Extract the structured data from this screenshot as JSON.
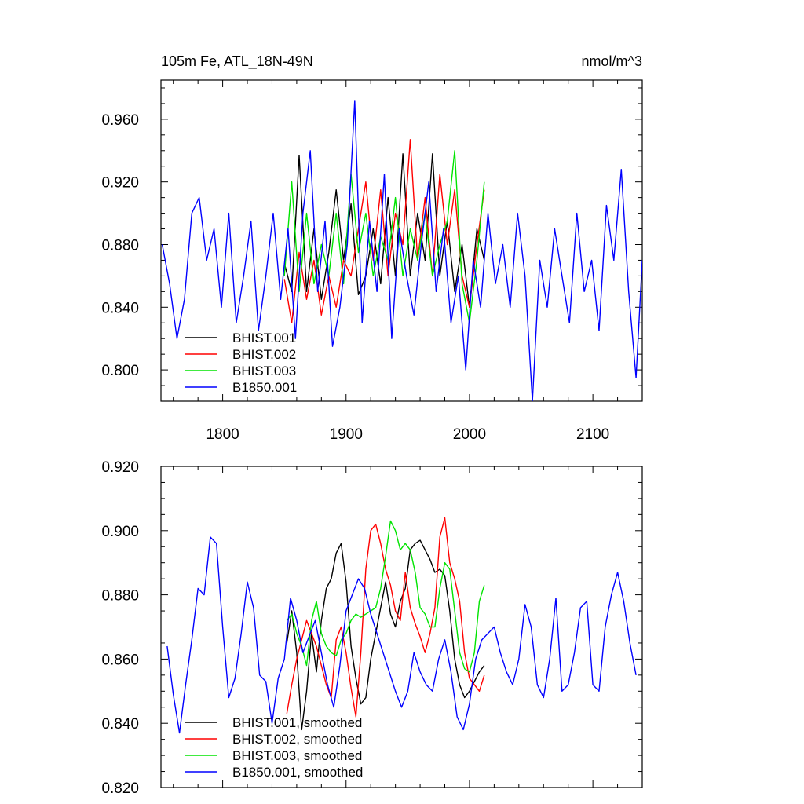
{
  "colors": {
    "BHIST.001": "#000000",
    "BHIST.002": "#ff0000",
    "BHIST.003": "#00e400",
    "B1850.001": "#0000ff"
  },
  "chart_data": [
    {
      "type": "line",
      "title": "105m Fe, ATL_18N-49N",
      "units": "nmol/m^3",
      "xlim": [
        1750,
        2140
      ],
      "ylim": [
        0.78,
        0.985
      ],
      "xticks": [
        1800,
        1900,
        2000,
        2100
      ],
      "xtick_labels": [
        "1800",
        "1900",
        "2000",
        "2100"
      ],
      "yticks": [
        0.8,
        0.84,
        0.88,
        0.92,
        0.96
      ],
      "ytick_labels": [
        "0.800",
        "0.840",
        "0.880",
        "0.920",
        "0.960"
      ],
      "legend_position": "bottom-left",
      "series": [
        {
          "name": "BHIST.001",
          "color": "#000000",
          "x": [
            1850,
            1856,
            1862,
            1868,
            1874,
            1880,
            1886,
            1892,
            1898,
            1904,
            1910,
            1916,
            1922,
            1928,
            1934,
            1940,
            1946,
            1952,
            1958,
            1964,
            1970,
            1976,
            1982,
            1988,
            1994,
            2000,
            2006,
            2012
          ],
          "y": [
            0.868,
            0.85,
            0.937,
            0.85,
            0.89,
            0.845,
            0.875,
            0.915,
            0.87,
            0.906,
            0.848,
            0.86,
            0.89,
            0.855,
            0.91,
            0.86,
            0.938,
            0.86,
            0.9,
            0.87,
            0.938,
            0.86,
            0.895,
            0.85,
            0.88,
            0.84,
            0.89,
            0.87
          ]
        },
        {
          "name": "BHIST.002",
          "color": "#ff0000",
          "x": [
            1850,
            1856,
            1862,
            1868,
            1874,
            1880,
            1886,
            1892,
            1898,
            1904,
            1910,
            1916,
            1922,
            1928,
            1934,
            1940,
            1946,
            1952,
            1958,
            1964,
            1970,
            1976,
            1982,
            1988,
            1994,
            2000,
            2006,
            2012
          ],
          "y": [
            0.858,
            0.83,
            0.875,
            0.845,
            0.87,
            0.835,
            0.86,
            0.84,
            0.87,
            0.86,
            0.89,
            0.92,
            0.87,
            0.915,
            0.86,
            0.9,
            0.88,
            0.947,
            0.87,
            0.91,
            0.86,
            0.925,
            0.88,
            0.915,
            0.86,
            0.84,
            0.88,
            0.915
          ]
        },
        {
          "name": "BHIST.003",
          "color": "#00e400",
          "x": [
            1850,
            1856,
            1862,
            1868,
            1874,
            1880,
            1886,
            1892,
            1898,
            1904,
            1910,
            1916,
            1922,
            1928,
            1934,
            1940,
            1946,
            1952,
            1958,
            1964,
            1970,
            1976,
            1982,
            1988,
            1994,
            2000,
            2006,
            2012
          ],
          "y": [
            0.86,
            0.92,
            0.85,
            0.9,
            0.855,
            0.88,
            0.86,
            0.9,
            0.855,
            0.925,
            0.875,
            0.9,
            0.86,
            0.885,
            0.87,
            0.91,
            0.86,
            0.89,
            0.87,
            0.9,
            0.86,
            0.88,
            0.895,
            0.94,
            0.855,
            0.83,
            0.87,
            0.92
          ]
        },
        {
          "name": "B1850.001",
          "color": "#0000ff",
          "x": [
            1751,
            1757,
            1763,
            1769,
            1775,
            1781,
            1787,
            1793,
            1799,
            1805,
            1811,
            1817,
            1823,
            1829,
            1835,
            1841,
            1847,
            1853,
            1859,
            1865,
            1871,
            1877,
            1883,
            1889,
            1895,
            1901,
            1907,
            1913,
            1919,
            1925,
            1931,
            1937,
            1943,
            1949,
            1955,
            1961,
            1967,
            1973,
            1979,
            1985,
            1991,
            1997,
            2003,
            2009,
            2015,
            2021,
            2027,
            2033,
            2039,
            2045,
            2051,
            2057,
            2063,
            2069,
            2075,
            2081,
            2087,
            2093,
            2099,
            2105,
            2111,
            2117,
            2123,
            2129,
            2135,
            2140
          ],
          "y": [
            0.88,
            0.855,
            0.82,
            0.845,
            0.9,
            0.91,
            0.87,
            0.89,
            0.84,
            0.9,
            0.83,
            0.86,
            0.895,
            0.825,
            0.86,
            0.9,
            0.845,
            0.89,
            0.82,
            0.9,
            0.94,
            0.85,
            0.895,
            0.815,
            0.84,
            0.88,
            0.972,
            0.83,
            0.895,
            0.85,
            0.925,
            0.82,
            0.89,
            0.86,
            0.835,
            0.88,
            0.92,
            0.85,
            0.89,
            0.83,
            0.86,
            0.8,
            0.87,
            0.84,
            0.9,
            0.855,
            0.88,
            0.84,
            0.9,
            0.86,
            0.78,
            0.87,
            0.84,
            0.89,
            0.86,
            0.83,
            0.9,
            0.85,
            0.87,
            0.825,
            0.905,
            0.87,
            0.928,
            0.85,
            0.795,
            0.87
          ]
        }
      ]
    },
    {
      "type": "line",
      "xlim": [
        1750,
        2140
      ],
      "ylim": [
        0.82,
        0.92
      ],
      "xticks": [
        1800,
        1900,
        2000,
        2100
      ],
      "yticks": [
        0.82,
        0.84,
        0.86,
        0.88,
        0.9,
        0.92
      ],
      "ytick_labels": [
        "0.820",
        "0.840",
        "0.860",
        "0.880",
        "0.900",
        "0.920"
      ],
      "legend_position": "bottom-left",
      "series": [
        {
          "name": "BHIST.001, smoothed",
          "color": "#000000",
          "x": [
            1852,
            1856,
            1860,
            1864,
            1868,
            1872,
            1876,
            1880,
            1884,
            1888,
            1892,
            1896,
            1900,
            1904,
            1908,
            1912,
            1916,
            1920,
            1924,
            1928,
            1932,
            1936,
            1940,
            1944,
            1948,
            1952,
            1956,
            1960,
            1964,
            1968,
            1972,
            1976,
            1980,
            1984,
            1988,
            1992,
            1996,
            2000,
            2004,
            2008,
            2012
          ],
          "x_note": "",
          "y": [
            0.865,
            0.875,
            0.862,
            0.838,
            0.85,
            0.868,
            0.856,
            0.872,
            0.882,
            0.885,
            0.893,
            0.896,
            0.884,
            0.864,
            0.854,
            0.846,
            0.848,
            0.86,
            0.868,
            0.876,
            0.884,
            0.874,
            0.87,
            0.878,
            0.882,
            0.894,
            0.896,
            0.897,
            0.894,
            0.891,
            0.887,
            0.888,
            0.886,
            0.875,
            0.86,
            0.852,
            0.848,
            0.85,
            0.853,
            0.856,
            0.858
          ]
        },
        {
          "name": "BHIST.002, smoothed",
          "color": "#ff0000",
          "x": [
            1852,
            1856,
            1860,
            1864,
            1868,
            1872,
            1876,
            1880,
            1884,
            1888,
            1892,
            1896,
            1900,
            1904,
            1908,
            1912,
            1916,
            1920,
            1924,
            1928,
            1932,
            1936,
            1940,
            1944,
            1948,
            1952,
            1956,
            1960,
            1964,
            1968,
            1972,
            1976,
            1980,
            1984,
            1988,
            1992,
            1996,
            2000,
            2004,
            2008,
            2012
          ],
          "y": [
            0.843,
            0.852,
            0.86,
            0.866,
            0.872,
            0.868,
            0.864,
            0.858,
            0.852,
            0.848,
            0.866,
            0.87,
            0.862,
            0.851,
            0.842,
            0.862,
            0.888,
            0.9,
            0.902,
            0.896,
            0.888,
            0.883,
            0.875,
            0.872,
            0.887,
            0.876,
            0.871,
            0.867,
            0.862,
            0.868,
            0.876,
            0.898,
            0.904,
            0.89,
            0.885,
            0.878,
            0.862,
            0.854,
            0.852,
            0.85,
            0.855
          ]
        },
        {
          "name": "BHIST.003, smoothed",
          "color": "#00e400",
          "x": [
            1852,
            1856,
            1860,
            1864,
            1868,
            1872,
            1876,
            1880,
            1884,
            1888,
            1892,
            1896,
            1900,
            1904,
            1908,
            1912,
            1916,
            1920,
            1924,
            1928,
            1932,
            1936,
            1940,
            1944,
            1948,
            1952,
            1956,
            1960,
            1964,
            1968,
            1972,
            1976,
            1980,
            1984,
            1988,
            1992,
            1996,
            2000,
            2004,
            2008,
            2012
          ],
          "y": [
            0.872,
            0.874,
            0.868,
            0.864,
            0.858,
            0.872,
            0.878,
            0.868,
            0.864,
            0.862,
            0.861,
            0.866,
            0.868,
            0.872,
            0.874,
            0.873,
            0.874,
            0.875,
            0.876,
            0.882,
            0.892,
            0.903,
            0.9,
            0.894,
            0.896,
            0.894,
            0.887,
            0.876,
            0.874,
            0.87,
            0.87,
            0.882,
            0.89,
            0.888,
            0.875,
            0.862,
            0.857,
            0.856,
            0.862,
            0.878,
            0.883
          ]
        },
        {
          "name": "B1850.001, smoothed",
          "color": "#0000ff",
          "x": [
            1755,
            1760,
            1765,
            1770,
            1775,
            1780,
            1785,
            1790,
            1795,
            1800,
            1805,
            1810,
            1815,
            1820,
            1825,
            1830,
            1835,
            1840,
            1845,
            1850,
            1855,
            1860,
            1865,
            1870,
            1875,
            1880,
            1885,
            1890,
            1895,
            1900,
            1905,
            1910,
            1915,
            1920,
            1925,
            1930,
            1935,
            1940,
            1945,
            1950,
            1955,
            1960,
            1965,
            1970,
            1975,
            1980,
            1985,
            1990,
            1995,
            2000,
            2005,
            2010,
            2015,
            2020,
            2025,
            2030,
            2035,
            2040,
            2045,
            2050,
            2055,
            2060,
            2065,
            2070,
            2075,
            2080,
            2085,
            2090,
            2095,
            2100,
            2105,
            2110,
            2115,
            2120,
            2125,
            2130,
            2135
          ],
          "y": [
            0.864,
            0.849,
            0.837,
            0.852,
            0.866,
            0.882,
            0.88,
            0.898,
            0.896,
            0.87,
            0.848,
            0.854,
            0.868,
            0.884,
            0.876,
            0.855,
            0.853,
            0.84,
            0.854,
            0.86,
            0.879,
            0.872,
            0.862,
            0.867,
            0.872,
            0.862,
            0.852,
            0.845,
            0.858,
            0.875,
            0.88,
            0.885,
            0.882,
            0.874,
            0.868,
            0.862,
            0.856,
            0.85,
            0.845,
            0.85,
            0.862,
            0.856,
            0.852,
            0.85,
            0.86,
            0.866,
            0.856,
            0.842,
            0.838,
            0.846,
            0.86,
            0.866,
            0.868,
            0.87,
            0.862,
            0.856,
            0.852,
            0.86,
            0.877,
            0.87,
            0.852,
            0.848,
            0.86,
            0.879,
            0.85,
            0.852,
            0.862,
            0.876,
            0.878,
            0.852,
            0.85,
            0.87,
            0.88,
            0.887,
            0.878,
            0.865,
            0.855
          ]
        }
      ]
    }
  ]
}
